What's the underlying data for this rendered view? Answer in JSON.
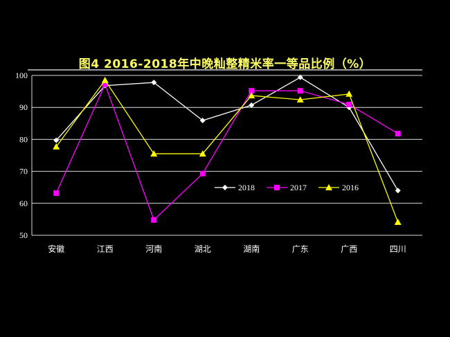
{
  "chart_data": {
    "type": "line",
    "title": "图4   2016-2018年中晚籼整精米率一等品比例（%）",
    "categories": [
      "安徽",
      "江西",
      "河南",
      "湖北",
      "湖南",
      "广东",
      "广西",
      "四川"
    ],
    "ylim": [
      50,
      100
    ],
    "yticks": [
      50,
      60,
      70,
      80,
      90,
      100
    ],
    "grid": true,
    "legend": "center-right",
    "series": [
      {
        "name": "2018",
        "color": "#ffffff",
        "marker": "diamond",
        "values": [
          79.7,
          96.8,
          97.8,
          85.9,
          90.7,
          99.4,
          90.0,
          64.0
        ]
      },
      {
        "name": "2017",
        "color": "#ff00ff",
        "marker": "square",
        "values": [
          63.2,
          97.2,
          54.8,
          69.3,
          95.2,
          95.2,
          90.9,
          81.8
        ]
      },
      {
        "name": "2016",
        "color": "#ffff00",
        "marker": "triangle",
        "values": [
          77.7,
          98.5,
          75.5,
          75.5,
          93.7,
          92.4,
          94.2,
          54.1
        ]
      }
    ]
  }
}
